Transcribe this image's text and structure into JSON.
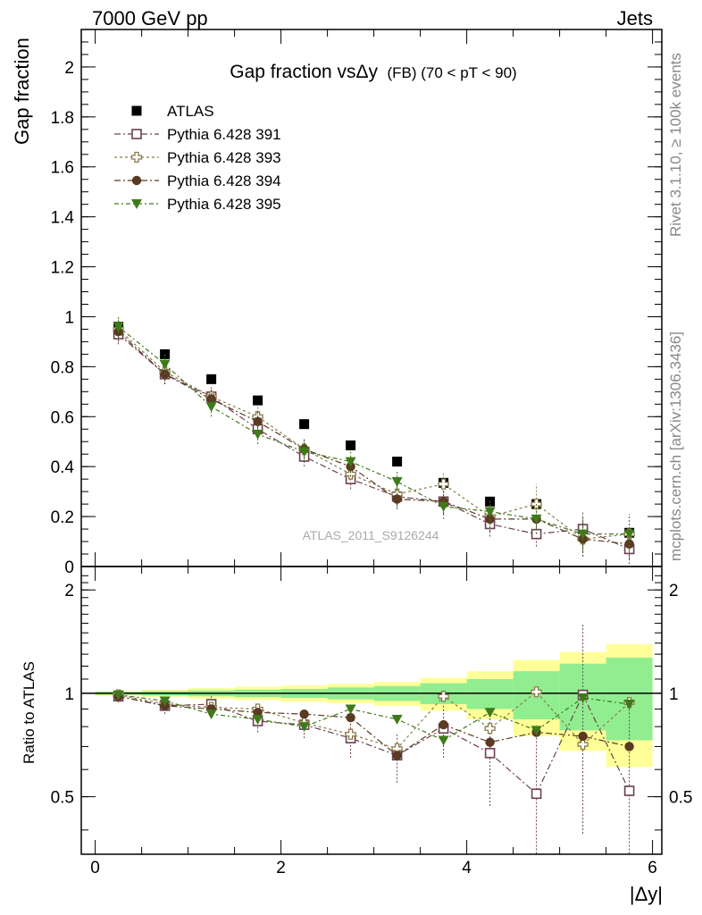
{
  "header": {
    "left": "7000 GeV pp",
    "right": "Jets"
  },
  "side_labels": {
    "rivet": "Rivet 3.1.10, ≥ 100k events",
    "mcplots": "mcplots.cern.ch [arXiv:1306.3436]"
  },
  "watermark": "ATLAS_2011_S9126244",
  "chart_data": [
    {
      "type": "scatter",
      "title_main": "Gap fraction vsΔy",
      "title_sub": "(FB)  (70 < pT <  90)",
      "xlabel": "|Δy|",
      "ylabel": "Gap fraction",
      "xlim": [
        -0.15,
        6.1
      ],
      "ylim": [
        0,
        2.15
      ],
      "yticks": [
        0,
        0.2,
        0.4,
        0.6,
        0.8,
        1,
        1.2,
        1.4,
        1.6,
        1.8,
        2
      ],
      "ytick_labels": [
        "0",
        "0.2",
        "0.4",
        "0.6",
        "0.8",
        "1",
        "1.2",
        "1.4",
        "1.6",
        "1.8",
        "2"
      ],
      "legend_position": "top-left",
      "x": [
        0.25,
        0.75,
        1.25,
        1.75,
        2.25,
        2.75,
        3.25,
        3.75,
        4.25,
        4.75,
        5.25,
        5.75
      ],
      "series": [
        {
          "name": "ATLAS",
          "color": "#000000",
          "marker": "square-filled",
          "values": [
            0.96,
            0.85,
            0.75,
            0.665,
            0.57,
            0.485,
            0.42,
            0.335,
            0.26,
            0.25,
            0.15,
            0.135
          ],
          "errors": [
            0.01,
            0.01,
            0.01,
            0.01,
            0.01,
            0.01,
            0.01,
            0.01,
            0.01,
            0.01,
            0.01,
            0.01
          ]
        },
        {
          "name": "Pythia 6.428 391",
          "color": "#6b4050",
          "marker": "square-open",
          "values": [
            0.93,
            0.77,
            0.68,
            0.55,
            0.44,
            0.35,
            0.28,
            0.26,
            0.17,
            0.13,
            0.15,
            0.07
          ],
          "errors": [
            0.04,
            0.04,
            0.04,
            0.04,
            0.04,
            0.04,
            0.04,
            0.05,
            0.05,
            0.05,
            0.07,
            0.06
          ]
        },
        {
          "name": "Pythia 6.428 393",
          "color": "#8a7a4a",
          "marker": "cross-open",
          "values": [
            0.95,
            0.78,
            0.68,
            0.6,
            0.47,
            0.37,
            0.29,
            0.33,
            0.2,
            0.25,
            0.11,
            0.13
          ],
          "errors": [
            0.04,
            0.04,
            0.04,
            0.04,
            0.04,
            0.04,
            0.04,
            0.05,
            0.05,
            0.08,
            0.07,
            0.08
          ]
        },
        {
          "name": "Pythia 6.428 394",
          "color": "#5a3a22",
          "marker": "circle-filled",
          "values": [
            0.94,
            0.77,
            0.67,
            0.58,
            0.47,
            0.4,
            0.27,
            0.26,
            0.19,
            0.19,
            0.11,
            0.09
          ],
          "errors": [
            0.04,
            0.04,
            0.04,
            0.04,
            0.04,
            0.04,
            0.04,
            0.05,
            0.05,
            0.06,
            0.07,
            0.06
          ]
        },
        {
          "name": "Pythia 6.428 395",
          "color": "#3f7a1a",
          "marker": "triangle-down-filled",
          "values": [
            0.96,
            0.81,
            0.64,
            0.53,
            0.46,
            0.42,
            0.34,
            0.24,
            0.22,
            0.19,
            0.13,
            0.13
          ],
          "errors": [
            0.04,
            0.04,
            0.04,
            0.04,
            0.04,
            0.04,
            0.04,
            0.05,
            0.05,
            0.06,
            0.07,
            0.08
          ]
        }
      ]
    },
    {
      "type": "scatter",
      "title": "",
      "xlabel": "|Δy|",
      "ylabel": "Ratio to ATLAS",
      "xlim": [
        -0.15,
        6.1
      ],
      "ylim": [
        0.34,
        2.34
      ],
      "xticks": [
        0,
        2,
        4,
        6
      ],
      "xtick_labels": [
        "0",
        "2",
        "4",
        "6"
      ],
      "yticks": [
        0.5,
        1,
        2
      ],
      "ytick_labels": [
        "0.5",
        "1",
        "2"
      ],
      "reference_line": 1,
      "x": [
        0.25,
        0.75,
        1.25,
        1.75,
        2.25,
        2.75,
        3.25,
        3.75,
        4.25,
        4.75,
        5.25,
        5.75
      ],
      "bands": {
        "inner_color": "#90ee90",
        "outer_color": "#ffff99",
        "inner_halfwidth": [
          0.01,
          0.015,
          0.02,
          0.025,
          0.03,
          0.04,
          0.05,
          0.07,
          0.1,
          0.16,
          0.22,
          0.27
        ],
        "outer_halfwidth": [
          0.015,
          0.025,
          0.035,
          0.045,
          0.055,
          0.065,
          0.08,
          0.11,
          0.16,
          0.25,
          0.32,
          0.39
        ]
      },
      "series": [
        {
          "name": "Pythia 6.428 391",
          "color": "#6b4050",
          "marker": "square-open",
          "values": [
            0.98,
            0.92,
            0.93,
            0.83,
            0.81,
            0.74,
            0.66,
            0.79,
            0.67,
            0.51,
            0.99,
            0.52
          ],
          "errors": [
            0.04,
            0.05,
            0.05,
            0.06,
            0.07,
            0.09,
            0.11,
            0.14,
            0.2,
            0.3,
            0.6,
            0.45
          ]
        },
        {
          "name": "Pythia 6.428 393",
          "color": "#8a7a4a",
          "marker": "cross-open",
          "values": [
            0.99,
            0.93,
            0.91,
            0.9,
            0.82,
            0.76,
            0.69,
            0.98,
            0.79,
            1.01,
            0.71,
            0.94
          ]
        },
        {
          "name": "Pythia 6.428 394",
          "color": "#5a3a22",
          "marker": "circle-filled",
          "values": [
            0.98,
            0.92,
            0.9,
            0.88,
            0.87,
            0.85,
            0.66,
            0.81,
            0.72,
            0.77,
            0.75,
            0.7
          ]
        },
        {
          "name": "Pythia 6.428 395",
          "color": "#3f7a1a",
          "marker": "triangle-down-filled",
          "values": [
            0.99,
            0.95,
            0.87,
            0.84,
            0.8,
            0.9,
            0.84,
            0.73,
            0.88,
            0.78,
            0.97,
            0.93
          ]
        }
      ]
    }
  ]
}
